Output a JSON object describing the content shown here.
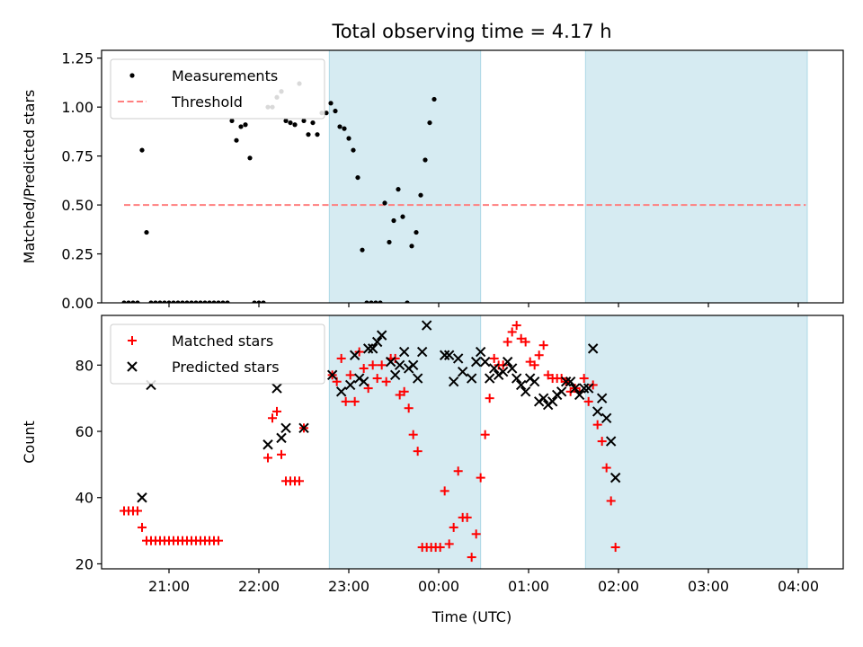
{
  "figure": {
    "title": "Total observing time = 4.17 h",
    "xlabel": "Time (UTC)"
  },
  "chart_data": [
    {
      "type": "scatter",
      "ylabel": "Matched/Predicted stars",
      "ylim": [
        0,
        1.29
      ],
      "xlim": [
        "20:15",
        "04:30"
      ],
      "yticks": [
        "0.00",
        "0.25",
        "0.50",
        "0.75",
        "1.00",
        "1.25"
      ],
      "ytick_values": [
        0,
        0.25,
        0.5,
        0.75,
        1.0,
        1.25
      ],
      "legend": {
        "placement": "upper-left",
        "entries": [
          "Measurements",
          "Threshold"
        ]
      },
      "threshold": {
        "name": "Threshold",
        "value": 0.5,
        "x_range": [
          "20:30",
          "04:05"
        ],
        "color": "#ff7f7f"
      },
      "shaded_regions": [
        [
          "22:47",
          "00:28"
        ],
        [
          "01:38",
          "04:06"
        ]
      ],
      "series": [
        {
          "name": "Measurements",
          "color": "#000000",
          "points": [
            [
              "20:30",
              0
            ],
            [
              "20:33",
              0
            ],
            [
              "20:36",
              0
            ],
            [
              "20:39",
              0
            ],
            [
              "20:42",
              0.78
            ],
            [
              "20:45",
              0.36
            ],
            [
              "20:48",
              0
            ],
            [
              "20:51",
              0
            ],
            [
              "20:54",
              0
            ],
            [
              "20:57",
              0
            ],
            [
              "21:00",
              0
            ],
            [
              "21:03",
              0
            ],
            [
              "21:06",
              0
            ],
            [
              "21:09",
              0
            ],
            [
              "21:12",
              0
            ],
            [
              "21:15",
              0
            ],
            [
              "21:18",
              0
            ],
            [
              "21:21",
              0
            ],
            [
              "21:24",
              0
            ],
            [
              "21:27",
              0
            ],
            [
              "21:30",
              0
            ],
            [
              "21:33",
              0
            ],
            [
              "21:36",
              0
            ],
            [
              "21:39",
              0
            ],
            [
              "21:42",
              0.93
            ],
            [
              "21:45",
              0.83
            ],
            [
              "21:48",
              0.9
            ],
            [
              "21:51",
              0.91
            ],
            [
              "21:54",
              0.74
            ],
            [
              "21:57",
              0
            ],
            [
              "22:00",
              0
            ],
            [
              "22:03",
              0
            ],
            [
              "22:06",
              1.0
            ],
            [
              "22:09",
              1.0
            ],
            [
              "22:12",
              1.05
            ],
            [
              "22:15",
              1.08
            ],
            [
              "22:18",
              0.93
            ],
            [
              "22:21",
              0.92
            ],
            [
              "22:24",
              0.91
            ],
            [
              "22:27",
              1.12
            ],
            [
              "22:30",
              0.93
            ],
            [
              "22:33",
              0.86
            ],
            [
              "22:36",
              0.92
            ],
            [
              "22:39",
              0.86
            ],
            [
              "22:42",
              0.97
            ],
            [
              "22:45",
              0.97
            ],
            [
              "22:48",
              1.02
            ],
            [
              "22:51",
              0.98
            ],
            [
              "22:54",
              0.9
            ],
            [
              "22:57",
              0.89
            ],
            [
              "23:00",
              0.84
            ],
            [
              "23:03",
              0.78
            ],
            [
              "23:06",
              0.64
            ],
            [
              "23:09",
              0.27
            ],
            [
              "23:12",
              0
            ],
            [
              "23:15",
              0
            ],
            [
              "23:18",
              0
            ],
            [
              "23:21",
              0
            ],
            [
              "23:24",
              0.51
            ],
            [
              "23:27",
              0.31
            ],
            [
              "23:30",
              0.42
            ],
            [
              "23:33",
              0.58
            ],
            [
              "23:36",
              0.44
            ],
            [
              "23:39",
              0
            ],
            [
              "23:42",
              0.29
            ],
            [
              "23:45",
              0.36
            ],
            [
              "23:48",
              0.55
            ],
            [
              "23:51",
              0.73
            ],
            [
              "23:54",
              0.92
            ],
            [
              "23:57",
              1.04
            ]
          ]
        }
      ]
    },
    {
      "type": "scatter",
      "ylabel": "Count",
      "ylim": [
        18.5,
        95
      ],
      "xlim": [
        "20:15",
        "04:30"
      ],
      "yticks": [
        "20",
        "40",
        "60",
        "80"
      ],
      "ytick_values": [
        20,
        40,
        60,
        80
      ],
      "xticks": [
        "21:00",
        "22:00",
        "23:00",
        "00:00",
        "01:00",
        "02:00",
        "03:00",
        "04:00"
      ],
      "legend": {
        "placement": "upper-left",
        "entries": [
          "Matched stars",
          "Predicted stars"
        ]
      },
      "shaded_regions": [
        [
          "22:47",
          "00:28"
        ],
        [
          "01:38",
          "04:06"
        ]
      ],
      "series": [
        {
          "name": "Matched stars",
          "marker": "plus",
          "color": "#ff0000",
          "points": [
            [
              "20:30",
              36
            ],
            [
              "20:33",
              36
            ],
            [
              "20:36",
              36
            ],
            [
              "20:39",
              36
            ],
            [
              "20:42",
              31
            ],
            [
              "20:45",
              27
            ],
            [
              "20:48",
              27
            ],
            [
              "20:51",
              27
            ],
            [
              "20:54",
              27
            ],
            [
              "20:57",
              27
            ],
            [
              "21:00",
              27
            ],
            [
              "21:03",
              27
            ],
            [
              "21:06",
              27
            ],
            [
              "21:09",
              27
            ],
            [
              "21:12",
              27
            ],
            [
              "21:15",
              27
            ],
            [
              "21:18",
              27
            ],
            [
              "21:21",
              27
            ],
            [
              "21:24",
              27
            ],
            [
              "21:27",
              27
            ],
            [
              "21:30",
              27
            ],
            [
              "21:33",
              27
            ],
            [
              "22:06",
              52
            ],
            [
              "22:09",
              64
            ],
            [
              "22:12",
              66
            ],
            [
              "22:15",
              53
            ],
            [
              "22:18",
              45
            ],
            [
              "22:21",
              45
            ],
            [
              "22:24",
              45
            ],
            [
              "22:27",
              45
            ],
            [
              "22:30",
              61
            ],
            [
              "22:49",
              77
            ],
            [
              "22:52",
              75
            ],
            [
              "22:55",
              82
            ],
            [
              "22:58",
              69
            ],
            [
              "23:01",
              77
            ],
            [
              "23:04",
              69
            ],
            [
              "23:07",
              84
            ],
            [
              "23:10",
              79
            ],
            [
              "23:13",
              73
            ],
            [
              "23:16",
              80
            ],
            [
              "23:19",
              76
            ],
            [
              "23:22",
              80
            ],
            [
              "23:25",
              75
            ],
            [
              "23:28",
              82
            ],
            [
              "23:31",
              82
            ],
            [
              "23:34",
              71
            ],
            [
              "23:37",
              72
            ],
            [
              "23:40",
              67
            ],
            [
              "23:43",
              59
            ],
            [
              "23:46",
              54
            ],
            [
              "23:49",
              25
            ],
            [
              "23:52",
              25
            ],
            [
              "23:55",
              25
            ],
            [
              "23:58",
              25
            ],
            [
              "00:01",
              25
            ],
            [
              "00:04",
              42
            ],
            [
              "00:07",
              26
            ],
            [
              "00:10",
              31
            ],
            [
              "00:13",
              48
            ],
            [
              "00:16",
              34
            ],
            [
              "00:19",
              34
            ],
            [
              "00:22",
              22
            ],
            [
              "00:25",
              29
            ],
            [
              "00:28",
              46
            ],
            [
              "00:31",
              59
            ],
            [
              "00:34",
              70
            ],
            [
              "00:37",
              82
            ],
            [
              "00:40",
              80
            ],
            [
              "00:43",
              80
            ],
            [
              "00:46",
              87
            ],
            [
              "00:49",
              90
            ],
            [
              "00:52",
              92
            ],
            [
              "00:55",
              88
            ],
            [
              "00:58",
              87
            ],
            [
              "01:01",
              81
            ],
            [
              "01:04",
              80
            ],
            [
              "01:07",
              83
            ],
            [
              "01:10",
              86
            ],
            [
              "01:13",
              77
            ],
            [
              "01:16",
              76
            ],
            [
              "01:19",
              76
            ],
            [
              "01:22",
              76
            ],
            [
              "01:25",
              75
            ],
            [
              "01:28",
              72
            ],
            [
              "01:31",
              73
            ],
            [
              "01:34",
              72
            ],
            [
              "01:37",
              76
            ],
            [
              "01:40",
              69
            ],
            [
              "01:43",
              74
            ],
            [
              "01:46",
              62
            ],
            [
              "01:49",
              57
            ],
            [
              "01:52",
              49
            ],
            [
              "01:55",
              39
            ],
            [
              "01:58",
              25
            ]
          ]
        },
        {
          "name": "Predicted stars",
          "marker": "x",
          "color": "#000000",
          "points": [
            [
              "20:42",
              40
            ],
            [
              "20:48",
              74
            ],
            [
              "22:06",
              56
            ],
            [
              "22:12",
              73
            ],
            [
              "22:15",
              58
            ],
            [
              "22:18",
              61
            ],
            [
              "22:30",
              61
            ],
            [
              "22:49",
              77
            ],
            [
              "22:55",
              72
            ],
            [
              "23:01",
              74
            ],
            [
              "23:04",
              83
            ],
            [
              "23:07",
              76
            ],
            [
              "23:10",
              75
            ],
            [
              "23:13",
              85
            ],
            [
              "23:16",
              85
            ],
            [
              "23:19",
              87
            ],
            [
              "23:22",
              89
            ],
            [
              "23:28",
              81
            ],
            [
              "23:31",
              77
            ],
            [
              "23:34",
              80
            ],
            [
              "23:37",
              84
            ],
            [
              "23:40",
              79
            ],
            [
              "23:43",
              80
            ],
            [
              "23:46",
              76
            ],
            [
              "23:49",
              84
            ],
            [
              "23:52",
              92
            ],
            [
              "00:04",
              83
            ],
            [
              "00:07",
              83
            ],
            [
              "00:10",
              75
            ],
            [
              "00:13",
              82
            ],
            [
              "00:16",
              78
            ],
            [
              "00:22",
              76
            ],
            [
              "00:25",
              81
            ],
            [
              "00:28",
              84
            ],
            [
              "00:31",
              81
            ],
            [
              "00:34",
              76
            ],
            [
              "00:37",
              79
            ],
            [
              "00:40",
              77
            ],
            [
              "00:43",
              78
            ],
            [
              "00:46",
              81
            ],
            [
              "00:49",
              79
            ],
            [
              "00:52",
              76
            ],
            [
              "00:55",
              74
            ],
            [
              "00:58",
              72
            ],
            [
              "01:01",
              76
            ],
            [
              "01:04",
              75
            ],
            [
              "01:07",
              69
            ],
            [
              "01:10",
              70
            ],
            [
              "01:13",
              68
            ],
            [
              "01:16",
              69
            ],
            [
              "01:19",
              71
            ],
            [
              "01:22",
              72
            ],
            [
              "01:25",
              75
            ],
            [
              "01:28",
              75
            ],
            [
              "01:31",
              73
            ],
            [
              "01:34",
              71
            ],
            [
              "01:37",
              73
            ],
            [
              "01:40",
              73
            ],
            [
              "01:43",
              85
            ],
            [
              "01:46",
              66
            ],
            [
              "01:49",
              70
            ],
            [
              "01:52",
              64
            ],
            [
              "01:55",
              57
            ],
            [
              "01:58",
              46
            ]
          ]
        }
      ]
    }
  ]
}
